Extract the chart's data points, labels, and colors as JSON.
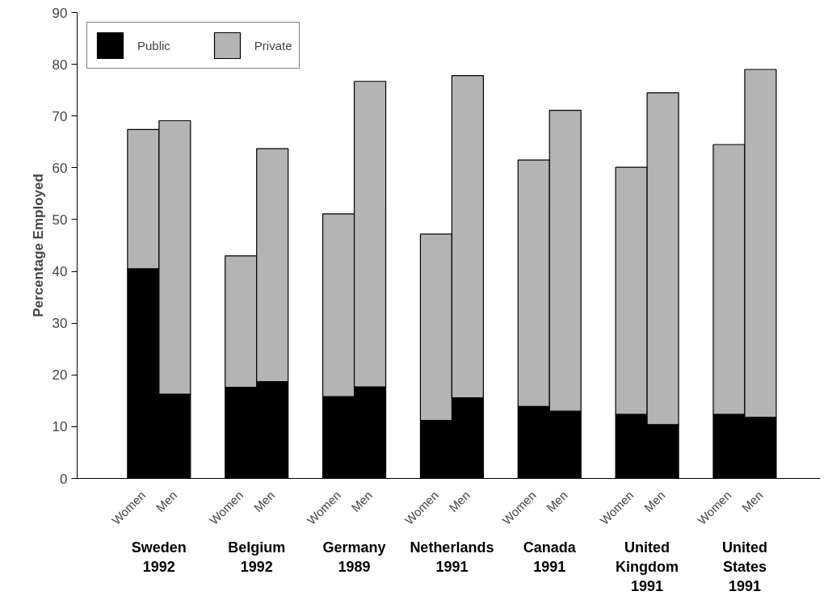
{
  "chart_data": {
    "type": "bar",
    "stacked": true,
    "ylabel": "Percentage Employed",
    "categories": [
      "Women",
      "Men",
      "Women",
      "Men",
      "Women",
      "Men",
      "Women",
      "Men",
      "Women",
      "Men",
      "Women",
      "Men",
      "Women",
      "Men"
    ],
    "series": [
      {
        "name": "Public",
        "color": "#000000",
        "values": [
          40.5,
          16.3,
          17.6,
          18.7,
          15.8,
          17.7,
          11.2,
          15.6,
          13.9,
          13.0,
          12.4,
          10.4,
          12.4,
          11.8
        ]
      },
      {
        "name": "Private",
        "color": "#b4b4b4",
        "values": [
          26.9,
          52.8,
          25.4,
          45.0,
          35.3,
          59.0,
          36.0,
          62.2,
          47.6,
          58.1,
          47.7,
          64.1,
          52.1,
          67.2
        ]
      }
    ],
    "annotations": [
      "Sweden\n1992",
      "Belgium\n1992",
      "Germany\n1989",
      "Netherlands\n1991",
      "Canada\n1991",
      "United\nKingdom\n1991",
      "United\nStates\n1991"
    ],
    "ylim": [
      0,
      90
    ],
    "yticks": [
      0,
      10,
      20,
      30,
      40,
      50,
      60,
      70,
      80,
      90
    ],
    "grid": false,
    "legend": "top left"
  }
}
